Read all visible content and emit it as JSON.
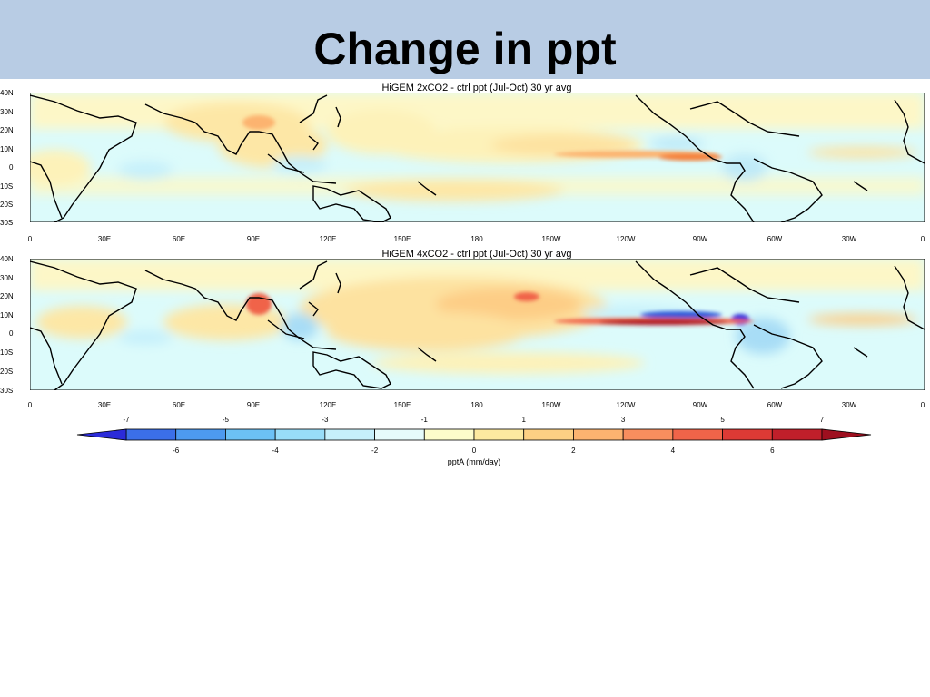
{
  "slide": {
    "title": "Change in ppt"
  },
  "maps": [
    {
      "title": "HiGEM 2xCO2 - ctrl ppt (Jul-Oct) 30 yr avg",
      "lat_labels": [
        "40N",
        "30N",
        "20N",
        "10N",
        "0",
        "10S",
        "20S",
        "30S"
      ],
      "lon_labels": [
        "0",
        "30E",
        "60E",
        "90E",
        "120E",
        "150E",
        "180",
        "150W",
        "120W",
        "90W",
        "60W",
        "30W",
        "0"
      ]
    },
    {
      "title": "HiGEM 4xCO2 - ctrl ppt (Jul-Oct) 30 yr avg",
      "lat_labels": [
        "40N",
        "30N",
        "20N",
        "10N",
        "0",
        "10S",
        "20S",
        "30S"
      ],
      "lon_labels": [
        "0",
        "30E",
        "60E",
        "90E",
        "120E",
        "150E",
        "180",
        "150W",
        "120W",
        "90W",
        "60W",
        "30W",
        "0"
      ]
    }
  ],
  "colorbar": {
    "label": "pptA (mm/day)",
    "top_labels": [
      "-7",
      "-5",
      "-3",
      "-1",
      "1",
      "3",
      "5",
      "7"
    ],
    "bottom_labels": [
      "-6",
      "-4",
      "-2",
      "0",
      "2",
      "4",
      "6"
    ],
    "colors": [
      "#2b2bd9",
      "#3b6fe8",
      "#4d9af0",
      "#6cc1f5",
      "#98ddf8",
      "#c6f0fb",
      "#e6fbfb",
      "#fdfccb",
      "#fde9a0",
      "#fdd084",
      "#fcb370",
      "#f88e5e",
      "#f06449",
      "#dd3a35",
      "#c01f2a",
      "#9e0f1f"
    ]
  },
  "colors": {
    "header_background": "#b8cce4",
    "map_background": "#dcfbfb"
  }
}
